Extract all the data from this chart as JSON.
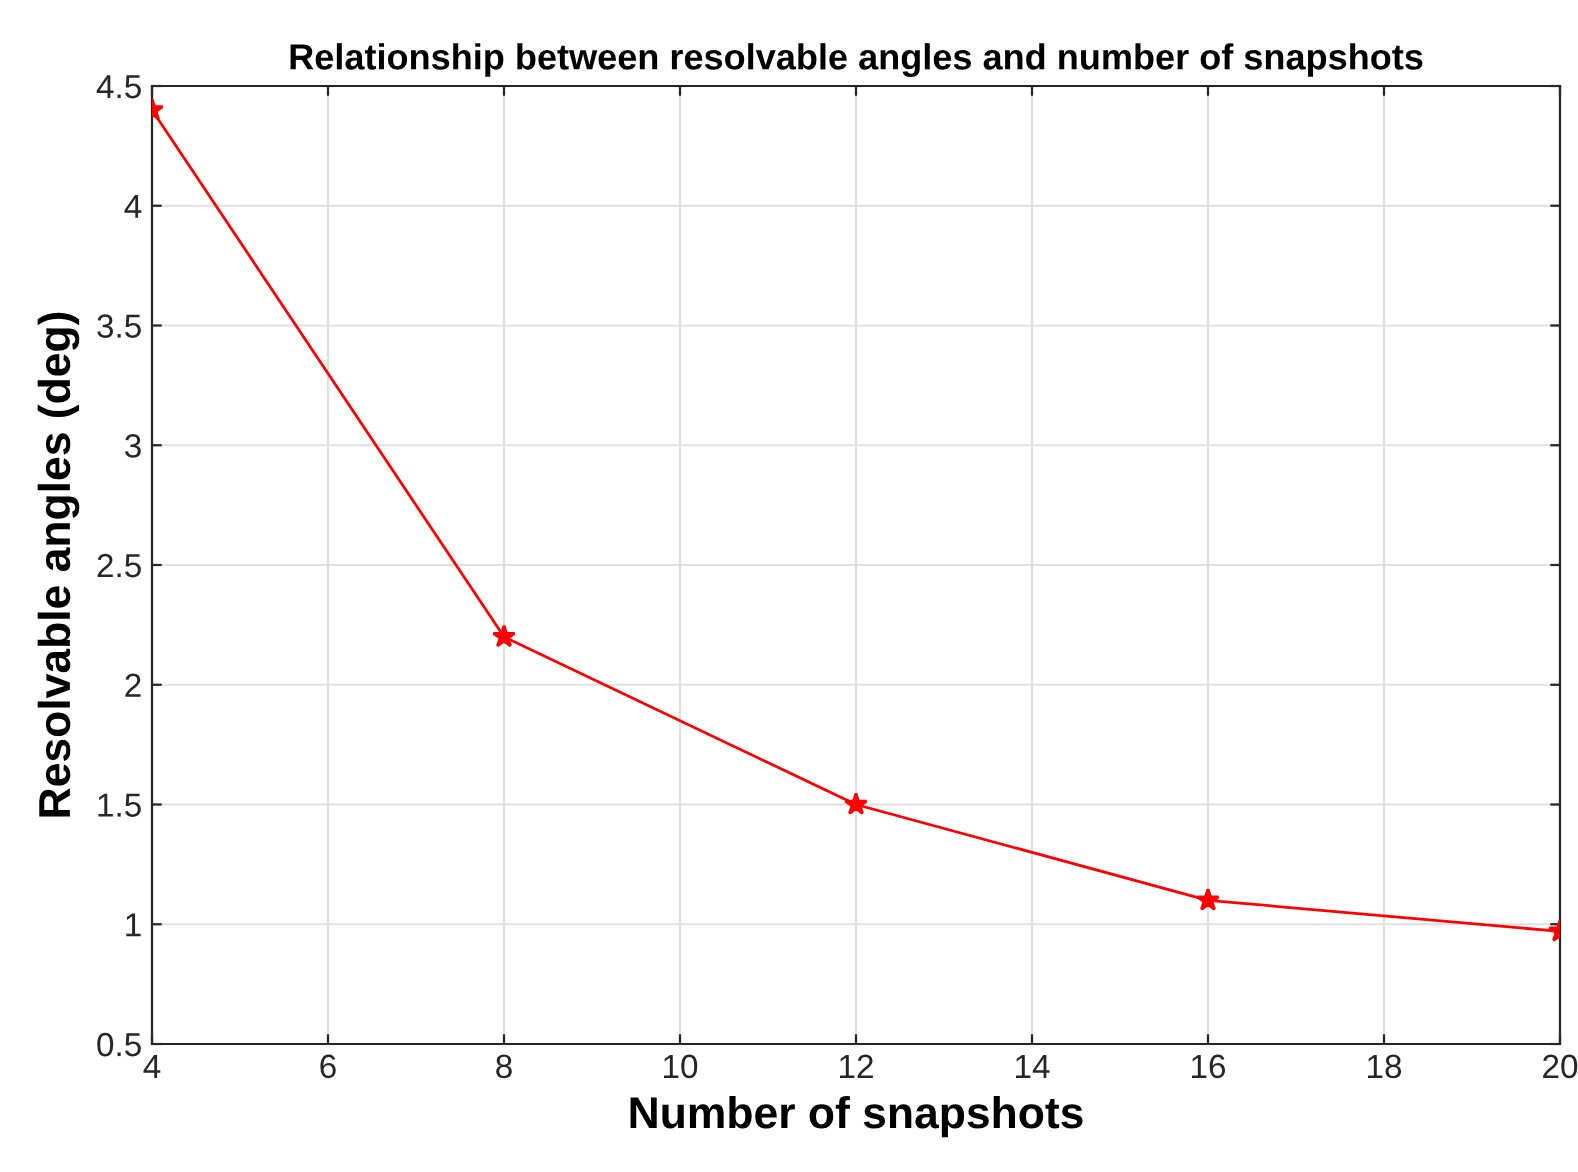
{
  "chart_data": {
    "type": "line",
    "title": "Relationship between resolvable angles and number of snapshots",
    "xlabel": "Number of snapshots",
    "ylabel": "Resolvable angles (deg)",
    "x": [
      4,
      8,
      12,
      16,
      20
    ],
    "series": [
      {
        "color": "#ff0000",
        "values": [
          4.4,
          2.2,
          1.5,
          1.1,
          0.97
        ]
      }
    ],
    "xlim": [
      4,
      20
    ],
    "xticks": [
      4,
      6,
      8,
      10,
      12,
      14,
      16,
      18,
      20
    ],
    "ylim": [
      0.5,
      4.5
    ],
    "yticks": [
      0.5,
      1,
      1.5,
      2,
      2.5,
      3,
      3.5,
      4,
      4.5
    ],
    "grid": true,
    "marker": "star",
    "line_style": "solid"
  }
}
